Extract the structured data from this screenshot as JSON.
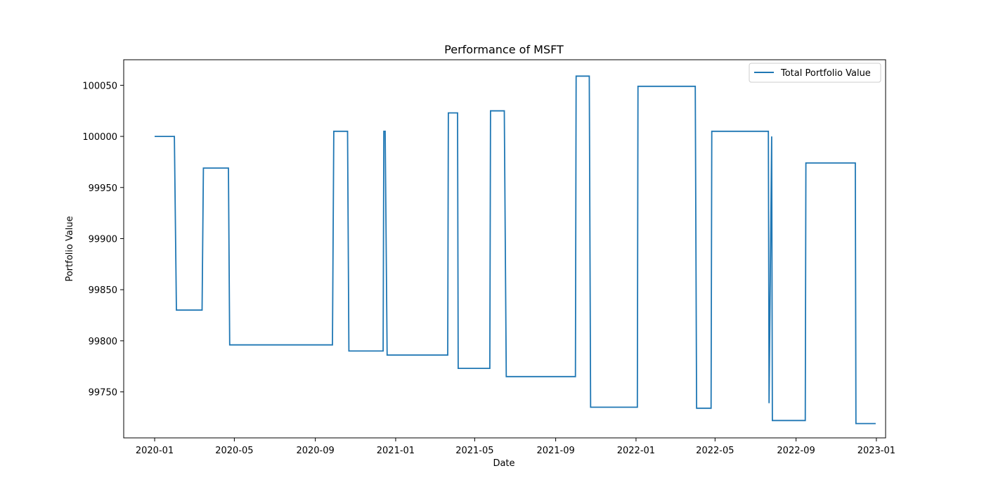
{
  "chart_data": {
    "type": "line",
    "title": "Performance of MSFT",
    "xlabel": "Date",
    "ylabel": "Portfolio Value",
    "xlim": [
      "2019-11-15",
      "2023-01-15"
    ],
    "ylim": [
      99705,
      100075
    ],
    "x_ticks": [
      "2020-01",
      "2020-05",
      "2020-09",
      "2021-01",
      "2021-05",
      "2021-09",
      "2022-01",
      "2022-05",
      "2022-09",
      "2023-01"
    ],
    "y_ticks": [
      99750,
      99800,
      99850,
      99900,
      99950,
      100000,
      100050
    ],
    "grid": false,
    "legend_position": "top-right",
    "series": [
      {
        "name": "Total Portfolio Value",
        "color": "#1f77b4",
        "points": [
          [
            "2020-01-01",
            100000
          ],
          [
            "2020-01-31",
            100000
          ],
          [
            "2020-02-03",
            99830
          ],
          [
            "2020-03-13",
            99830
          ],
          [
            "2020-03-15",
            99969
          ],
          [
            "2020-04-22",
            99969
          ],
          [
            "2020-04-24",
            99796
          ],
          [
            "2020-09-27",
            99796
          ],
          [
            "2020-09-29",
            100005
          ],
          [
            "2020-10-20",
            100005
          ],
          [
            "2020-10-22",
            99790
          ],
          [
            "2020-12-13",
            99790
          ],
          [
            "2020-12-14",
            100005
          ],
          [
            "2020-12-16",
            100005
          ],
          [
            "2020-12-19",
            99786
          ],
          [
            "2021-03-21",
            99786
          ],
          [
            "2021-03-22",
            100023
          ],
          [
            "2021-04-05",
            100023
          ],
          [
            "2021-04-06",
            99773
          ],
          [
            "2021-05-24",
            99773
          ],
          [
            "2021-05-25",
            100025
          ],
          [
            "2021-06-15",
            100025
          ],
          [
            "2021-06-18",
            99765
          ],
          [
            "2021-10-01",
            99765
          ],
          [
            "2021-10-02",
            100059
          ],
          [
            "2021-10-22",
            100059
          ],
          [
            "2021-10-24",
            99735
          ],
          [
            "2022-01-03",
            99735
          ],
          [
            "2022-01-04",
            100049
          ],
          [
            "2022-04-01",
            100049
          ],
          [
            "2022-04-03",
            99734
          ],
          [
            "2022-04-25",
            99734
          ],
          [
            "2022-04-26",
            100005
          ],
          [
            "2022-07-21",
            100005
          ],
          [
            "2022-07-22",
            99739
          ],
          [
            "2022-07-26",
            100000
          ],
          [
            "2022-07-27",
            99722
          ],
          [
            "2022-09-15",
            99722
          ],
          [
            "2022-09-16",
            99974
          ],
          [
            "2022-11-30",
            99974
          ],
          [
            "2022-12-01",
            99719
          ],
          [
            "2022-12-31",
            99719
          ]
        ]
      }
    ]
  }
}
